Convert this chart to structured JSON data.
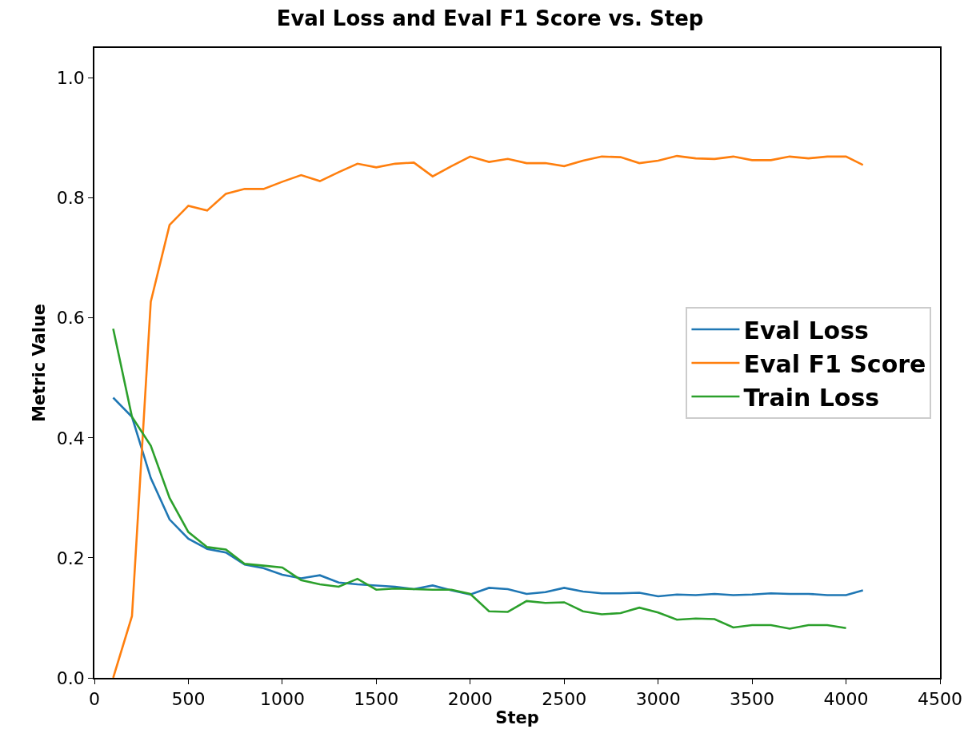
{
  "chart_data": {
    "type": "line",
    "title": "Eval Loss and Eval F1 Score vs. Step",
    "xlabel": "Step",
    "ylabel": "Metric Value",
    "xlim": [
      0,
      4500
    ],
    "xticks": [
      0,
      500,
      1000,
      1500,
      2000,
      2500,
      3000,
      3500,
      4000,
      4500
    ],
    "ylim": [
      0,
      1.05
    ],
    "yticks": [
      {
        "value": 0,
        "label": "0.0"
      },
      {
        "value": 0.2,
        "label": "0.2"
      },
      {
        "value": 0.4,
        "label": "0.4"
      },
      {
        "value": 0.6,
        "label": "0.6"
      },
      {
        "value": 0.8,
        "label": "0.8"
      },
      {
        "value": 1,
        "label": "1.0"
      }
    ],
    "legend": "right",
    "line_style": "solid",
    "marker": "none",
    "x": [
      100,
      200,
      300,
      400,
      500,
      600,
      700,
      800,
      900,
      1000,
      1100,
      1200,
      1300,
      1400,
      1500,
      1600,
      1700,
      1800,
      1900,
      2000,
      2100,
      2200,
      2300,
      2400,
      2500,
      2600,
      2700,
      2800,
      2900,
      3000,
      3100,
      3200,
      3300,
      3400,
      3500,
      3600,
      3700,
      3800,
      3900,
      4000,
      4090
    ],
    "series": [
      {
        "name": "Eval Loss",
        "color": "#1f77b4",
        "values": [
          0.467,
          0.435,
          0.333,
          0.264,
          0.232,
          0.215,
          0.209,
          0.189,
          0.183,
          0.172,
          0.166,
          0.171,
          0.159,
          0.156,
          0.154,
          0.152,
          0.148,
          0.154,
          0.146,
          0.139,
          0.15,
          0.148,
          0.14,
          0.143,
          0.15,
          0.144,
          0.141,
          0.141,
          0.142,
          0.136,
          0.139,
          0.138,
          0.14,
          0.138,
          0.139,
          0.141,
          0.14,
          0.14,
          0.138,
          0.138,
          0.146
        ]
      },
      {
        "name": "Eval F1 Score",
        "color": "#ff7f0e",
        "values": [
          0.0,
          0.103,
          0.627,
          0.755,
          0.787,
          0.779,
          0.807,
          0.815,
          0.815,
          0.827,
          0.838,
          0.828,
          0.843,
          0.857,
          0.851,
          0.857,
          0.859,
          0.836,
          0.853,
          0.869,
          0.86,
          0.865,
          0.858,
          0.858,
          0.853,
          0.862,
          0.869,
          0.868,
          0.858,
          0.862,
          0.87,
          0.866,
          0.865,
          0.869,
          0.863,
          0.863,
          0.869,
          0.866,
          0.869,
          0.869,
          0.855
        ]
      },
      {
        "name": "Train Loss",
        "color": "#2ca02c",
        "x": [
          100,
          200,
          300,
          400,
          500,
          600,
          700,
          800,
          900,
          1000,
          1100,
          1200,
          1300,
          1400,
          1500,
          1600,
          1700,
          1800,
          1900,
          2000,
          2100,
          2200,
          2300,
          2400,
          2500,
          2600,
          2700,
          2800,
          2900,
          3000,
          3100,
          3200,
          3300,
          3400,
          3500,
          3600,
          3700,
          3800,
          3900,
          4000
        ],
        "values": [
          0.582,
          0.435,
          0.387,
          0.3,
          0.243,
          0.218,
          0.214,
          0.19,
          0.187,
          0.184,
          0.163,
          0.156,
          0.152,
          0.165,
          0.147,
          0.149,
          0.148,
          0.147,
          0.147,
          0.14,
          0.111,
          0.11,
          0.128,
          0.125,
          0.126,
          0.111,
          0.106,
          0.108,
          0.117,
          0.109,
          0.097,
          0.099,
          0.098,
          0.084,
          0.088,
          0.088,
          0.082,
          0.088,
          0.088,
          0.083
        ]
      }
    ]
  }
}
